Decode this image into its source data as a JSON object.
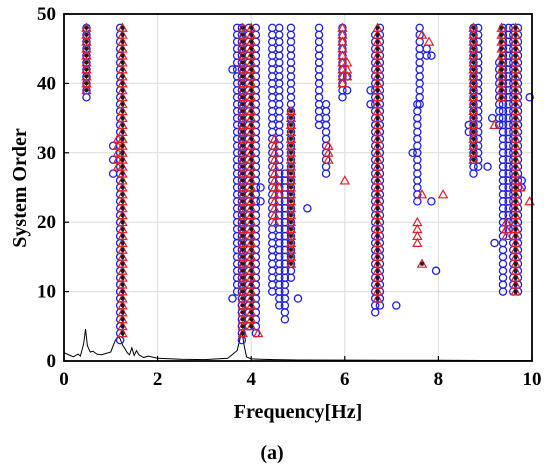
{
  "chart_data": {
    "type": "scatter",
    "xlabel": "Frequency[Hz]",
    "ylabel": "System Order",
    "caption": "(a)",
    "xlim": [
      0,
      10
    ],
    "ylim": [
      0,
      50
    ],
    "xticks": [
      0,
      2,
      4,
      6,
      8,
      10
    ],
    "yticks": [
      0,
      10,
      20,
      30,
      40,
      50
    ],
    "grid": true,
    "colors": {
      "circle": "#1f1fe0",
      "triangle": "#e0202a",
      "star": "#1a1a1a",
      "spectrum": "#000000"
    },
    "series": [
      {
        "marker": "circle",
        "columns": [
          {
            "x": 0.48,
            "y_from": 38,
            "y_to": 48
          },
          {
            "x": 1.05,
            "points": [
              27,
              29,
              31
            ]
          },
          {
            "x": 1.2,
            "y_from": 3,
            "y_to": 48
          },
          {
            "x": 3.6,
            "points": [
              9,
              42
            ]
          },
          {
            "x": 3.7,
            "y_from": 10,
            "y_to": 48
          },
          {
            "x": 3.8,
            "y_from": 3,
            "y_to": 48
          },
          {
            "x": 3.95,
            "y_from": 5,
            "y_to": 48
          },
          {
            "x": 4.1,
            "y_from": 4,
            "y_to": 48
          },
          {
            "x": 4.2,
            "points": [
              23,
              25
            ]
          },
          {
            "x": 4.45,
            "y_from": 10,
            "y_to": 48
          },
          {
            "x": 4.6,
            "y_from": 8,
            "y_to": 48
          },
          {
            "x": 4.72,
            "y_from": 6,
            "y_to": 27
          },
          {
            "x": 4.85,
            "y_from": 12,
            "y_to": 48
          },
          {
            "x": 5.0,
            "points": [
              9
            ]
          },
          {
            "x": 5.2,
            "points": [
              22
            ]
          },
          {
            "x": 5.45,
            "y_from": 34,
            "y_to": 48
          },
          {
            "x": 5.6,
            "y_from": 27,
            "y_to": 37
          },
          {
            "x": 5.95,
            "y_from": 38,
            "y_to": 48
          },
          {
            "x": 6.05,
            "points": [
              39,
              41
            ]
          },
          {
            "x": 6.55,
            "points": [
              37,
              39
            ]
          },
          {
            "x": 6.65,
            "y_from": 7,
            "y_to": 47
          },
          {
            "x": 6.75,
            "y_from": 8,
            "y_to": 48
          },
          {
            "x": 7.1,
            "points": [
              8
            ]
          },
          {
            "x": 7.45,
            "points": [
              30
            ]
          },
          {
            "x": 7.55,
            "y_from": 23,
            "y_to": 37
          },
          {
            "x": 7.6,
            "y_from": 37,
            "y_to": 48
          },
          {
            "x": 7.75,
            "points": [
              44,
              45
            ]
          },
          {
            "x": 7.85,
            "points": [
              44,
              23
            ]
          },
          {
            "x": 7.95,
            "points": [
              13
            ]
          },
          {
            "x": 8.65,
            "points": [
              33,
              34
            ]
          },
          {
            "x": 8.75,
            "y_from": 27,
            "y_to": 48
          },
          {
            "x": 8.85,
            "y_from": 28,
            "y_to": 48
          },
          {
            "x": 9.05,
            "points": [
              28
            ]
          },
          {
            "x": 9.15,
            "points": [
              35
            ]
          },
          {
            "x": 9.2,
            "points": [
              17
            ]
          },
          {
            "x": 9.3,
            "y_from": 34,
            "y_to": 43
          },
          {
            "x": 9.38,
            "y_from": 10,
            "y_to": 48
          },
          {
            "x": 9.5,
            "y_from": 19,
            "y_to": 48
          },
          {
            "x": 9.6,
            "y_from": 10,
            "y_to": 48
          },
          {
            "x": 9.7,
            "y_from": 10,
            "y_to": 48
          },
          {
            "x": 9.78,
            "points": [
              25,
              26
            ]
          },
          {
            "x": 9.95,
            "points": [
              38
            ]
          }
        ]
      },
      {
        "marker": "triangle",
        "columns": [
          {
            "x": 0.48,
            "y_from": 39,
            "y_to": 48
          },
          {
            "x": 1.15,
            "y_from": 28,
            "y_to": 32
          },
          {
            "x": 1.25,
            "y_from": 4,
            "y_to": 48
          },
          {
            "x": 3.82,
            "y_from": 4,
            "y_to": 48
          },
          {
            "x": 4.0,
            "y_from": 5,
            "y_to": 48
          },
          {
            "x": 4.15,
            "points": [
              4
            ]
          },
          {
            "x": 4.5,
            "y_from": 20,
            "y_to": 32
          },
          {
            "x": 4.6,
            "points": [
              24,
              25
            ]
          },
          {
            "x": 4.85,
            "y_from": 14,
            "y_to": 36
          },
          {
            "x": 5.65,
            "points": [
              29,
              30,
              31
            ]
          },
          {
            "x": 5.95,
            "y_from": 40,
            "y_to": 48
          },
          {
            "x": 6.0,
            "points": [
              26
            ]
          },
          {
            "x": 6.05,
            "points": [
              41,
              42,
              43
            ]
          },
          {
            "x": 6.7,
            "y_from": 9,
            "y_to": 48
          },
          {
            "x": 7.55,
            "y_from": 17,
            "y_to": 20
          },
          {
            "x": 7.65,
            "points": [
              14,
              24,
              47
            ]
          },
          {
            "x": 7.8,
            "points": [
              46
            ]
          },
          {
            "x": 8.1,
            "points": [
              24
            ]
          },
          {
            "x": 8.75,
            "y_from": 29,
            "y_to": 48
          },
          {
            "x": 9.2,
            "points": [
              34
            ]
          },
          {
            "x": 9.35,
            "y_from": 38,
            "y_to": 48
          },
          {
            "x": 9.45,
            "points": [
              18,
              19,
              20
            ]
          },
          {
            "x": 9.65,
            "y_from": 10,
            "y_to": 48
          },
          {
            "x": 9.75,
            "points": [
              25
            ]
          },
          {
            "x": 9.95,
            "points": [
              23
            ]
          }
        ]
      },
      {
        "marker": "star",
        "columns": [
          {
            "x": 0.48,
            "y_from": 39,
            "y_to": 48
          },
          {
            "x": 1.25,
            "y_from": 4,
            "y_to": 48
          },
          {
            "x": 3.82,
            "y_from": 4,
            "y_to": 48
          },
          {
            "x": 4.0,
            "y_from": 5,
            "y_to": 48
          },
          {
            "x": 4.85,
            "y_from": 14,
            "y_to": 36
          },
          {
            "x": 6.7,
            "y_from": 9,
            "y_to": 48
          },
          {
            "x": 7.65,
            "points": [
              14
            ]
          },
          {
            "x": 8.75,
            "y_from": 29,
            "y_to": 48
          },
          {
            "x": 9.35,
            "y_from": 38,
            "y_to": 48
          },
          {
            "x": 9.65,
            "y_from": 10,
            "y_to": 48
          }
        ]
      }
    ],
    "spectrum": {
      "x": [
        0,
        0.1,
        0.2,
        0.3,
        0.35,
        0.42,
        0.46,
        0.5,
        0.56,
        0.62,
        0.7,
        0.8,
        0.9,
        1.0,
        1.05,
        1.1,
        1.15,
        1.2,
        1.25,
        1.3,
        1.35,
        1.4,
        1.45,
        1.5,
        1.55,
        1.6,
        1.7,
        1.8,
        2.0,
        2.5,
        3.0,
        3.5,
        3.7,
        3.8,
        3.85,
        3.9,
        4.0,
        4.2,
        4.5,
        5.0,
        6.0,
        7.0,
        8.0,
        9.0,
        10.0
      ],
      "y": [
        1.2,
        0.9,
        0.6,
        1.0,
        0.7,
        2.5,
        4.6,
        2.2,
        1.3,
        1.4,
        1.0,
        0.9,
        1.1,
        1.3,
        2.2,
        3.0,
        3.5,
        3.2,
        2.3,
        1.8,
        1.2,
        0.9,
        1.9,
        0.8,
        1.5,
        0.9,
        0.5,
        0.7,
        0.4,
        0.25,
        0.2,
        0.4,
        1.5,
        4.3,
        2.2,
        0.6,
        0.3,
        0.25,
        0.2,
        0.15,
        0.12,
        0.1,
        0.1,
        0.08,
        0.05
      ]
    }
  }
}
